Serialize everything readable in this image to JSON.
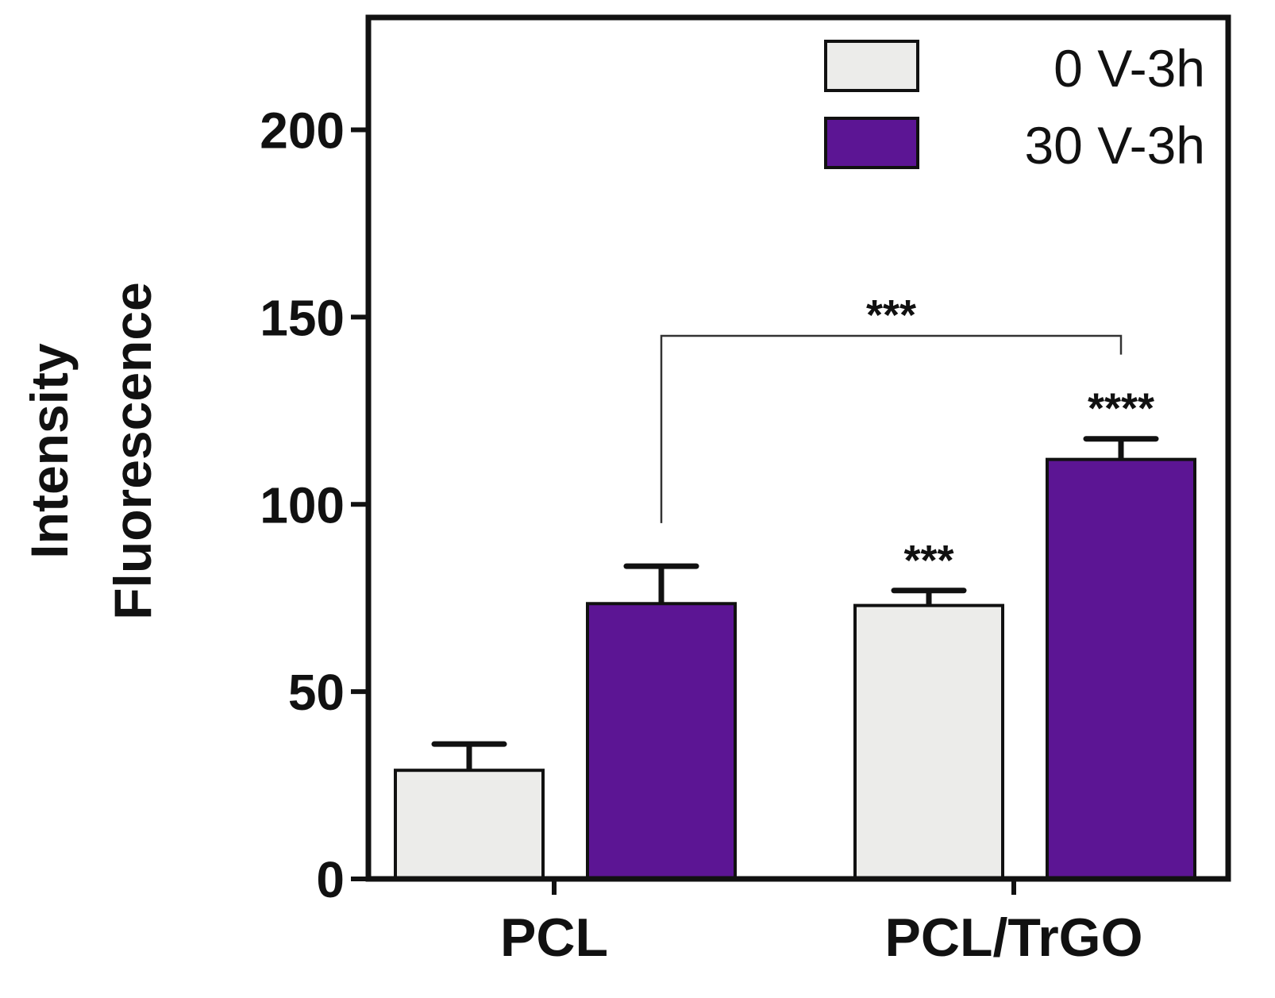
{
  "chart_data": {
    "type": "bar",
    "title": "",
    "xlabel": "",
    "ylabel_lines": [
      "Intensity",
      "Fluorescence"
    ],
    "ylim": [
      0,
      230
    ],
    "yticks": [
      0,
      50,
      100,
      150,
      200
    ],
    "ytick_labels": [
      "0",
      "50",
      "100",
      "150",
      "200"
    ],
    "categories": [
      "PCL",
      "PCL/TrGO"
    ],
    "series": [
      {
        "name": "0 V-3h",
        "color": "#ececea",
        "values": [
          29,
          73
        ],
        "errors": [
          7,
          4
        ]
      },
      {
        "name": "30 V-3h",
        "color": "#5c1594",
        "values": [
          73.5,
          112
        ],
        "errors": [
          10,
          5.5
        ]
      }
    ],
    "annotations": [
      {
        "text": "***",
        "category": 1,
        "series": 0
      },
      {
        "text": "****",
        "category": 1,
        "series": 1
      }
    ],
    "brackets": [
      {
        "text": "***",
        "from": {
          "category": 0,
          "series": 1
        },
        "to": {
          "category": 1,
          "series": 1
        },
        "y": 145
      }
    ],
    "legend_position": "top-right",
    "grid": false
  }
}
